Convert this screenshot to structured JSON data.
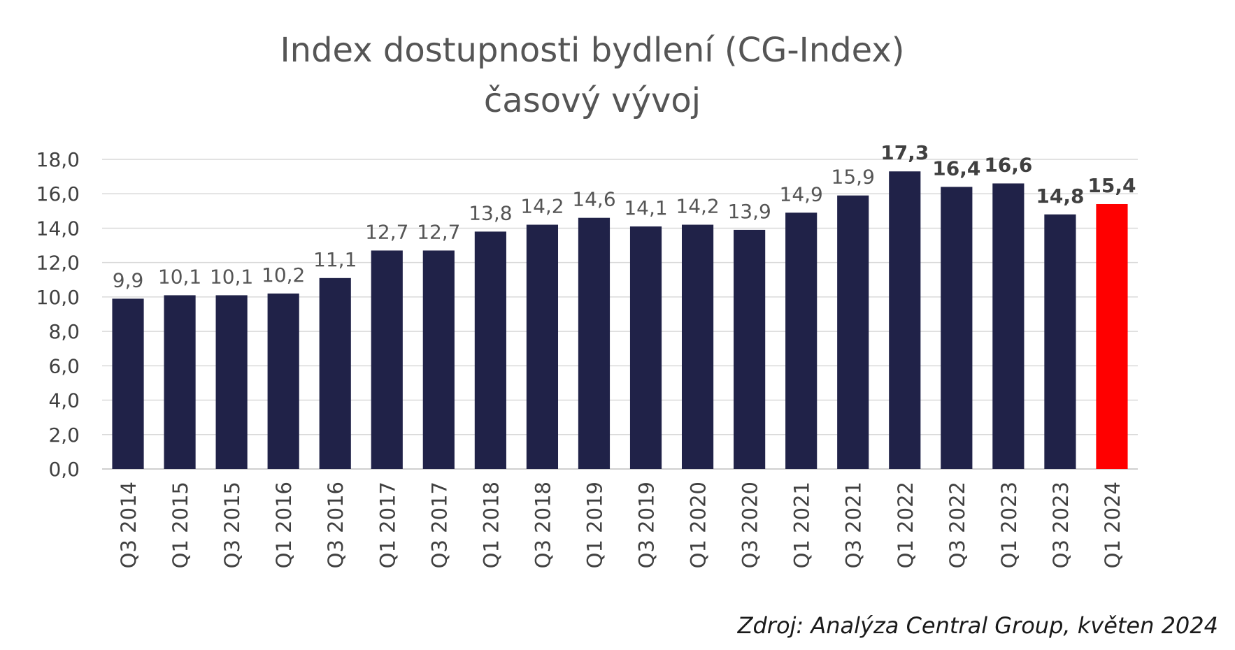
{
  "chart_data": {
    "type": "bar",
    "title_lines": [
      "Index dostupnosti bydlení (CG-Index)",
      "časový vývoj"
    ],
    "categories": [
      "Q3 2014",
      "Q1 2015",
      "Q3 2015",
      "Q1 2016",
      "Q3 2016",
      "Q1 2017",
      "Q3 2017",
      "Q1 2018",
      "Q3 2018",
      "Q1 2019",
      "Q3 2019",
      "Q1 2020",
      "Q3 2020",
      "Q1 2021",
      "Q3 2021",
      "Q1 2022",
      "Q3 2022",
      "Q1 2023",
      "Q3 2023",
      "Q1 2024"
    ],
    "values": [
      9.9,
      10.1,
      10.1,
      10.2,
      11.1,
      12.7,
      12.7,
      13.8,
      14.2,
      14.6,
      14.1,
      14.2,
      13.9,
      14.9,
      15.9,
      17.3,
      16.4,
      16.6,
      14.8,
      15.4
    ],
    "value_labels": [
      "9,9",
      "10,1",
      "10,1",
      "10,2",
      "11,1",
      "12,7",
      "12,7",
      "13,8",
      "14,2",
      "14,6",
      "14,1",
      "14,2",
      "13,9",
      "14,9",
      "15,9",
      "17,3",
      "16,4",
      "16,6",
      "14,8",
      "15,4"
    ],
    "bold_labels": [
      false,
      false,
      false,
      false,
      false,
      false,
      false,
      false,
      false,
      false,
      false,
      false,
      false,
      false,
      false,
      true,
      true,
      true,
      true,
      true
    ],
    "bar_colors": [
      "#202248",
      "#202248",
      "#202248",
      "#202248",
      "#202248",
      "#202248",
      "#202248",
      "#202248",
      "#202248",
      "#202248",
      "#202248",
      "#202248",
      "#202248",
      "#202248",
      "#202248",
      "#202248",
      "#202248",
      "#202248",
      "#202248",
      "#ff0000"
    ],
    "ylim": [
      0,
      18
    ],
    "yticks": [
      0,
      2,
      4,
      6,
      8,
      10,
      12,
      14,
      16,
      18
    ],
    "ytick_labels": [
      "0,0",
      "2,0",
      "4,0",
      "6,0",
      "8,0",
      "10,0",
      "12,0",
      "14,0",
      "16,0",
      "18,0"
    ],
    "xlabel": "",
    "ylabel": "",
    "grid": true,
    "legend": "none",
    "source": "Zdroj: Analýza Central Group, květen 2024"
  },
  "colors": {
    "bar": "#202248",
    "highlight": "#ff0000",
    "grid": "#d9d9d9",
    "title": "#555555"
  }
}
